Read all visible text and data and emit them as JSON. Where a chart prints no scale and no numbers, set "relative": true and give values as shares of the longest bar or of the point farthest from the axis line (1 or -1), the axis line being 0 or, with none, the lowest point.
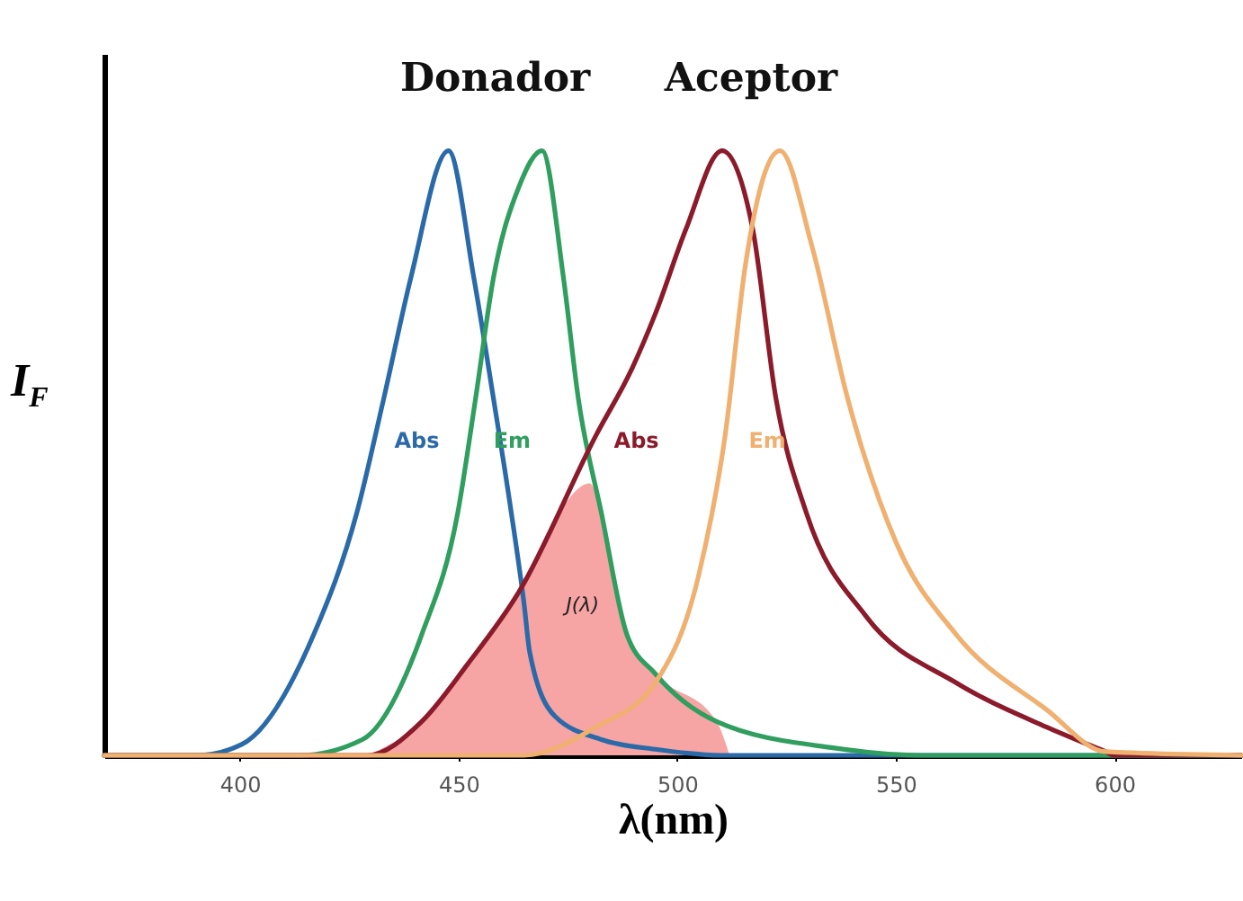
{
  "chart_data": {
    "type": "line",
    "relative": true,
    "xlabel": "λ(nm)",
    "ylabel": "I$_{F}$",
    "xlim": [
      369,
      629
    ],
    "xticks": [
      400,
      450,
      500,
      550,
      600
    ],
    "grid": false,
    "series": [
      {
        "type": "area",
        "name": "J(λ)",
        "color": "#f6a4a4",
        "x": [
          429.2,
          441.6,
          452,
          463.8,
          472,
          480,
          482.7,
          488.5,
          495,
          509,
          512
        ],
        "values": [
          0,
          0.056,
          0.15,
          0.27,
          0.39,
          0.45,
          0.4,
          0.2,
          0.135,
          0.056,
          0
        ]
      },
      {
        "name": "Abs",
        "color": "#2a6aa8",
        "x": [
          369,
          390,
          400.4,
          416.9,
          426.7,
          432.9,
          439.1,
          447.7,
          453.5,
          458,
          462.1,
          465,
          466.3,
          472,
          482.7,
          495,
          510,
          629
        ],
        "values": [
          0,
          0,
          0.018,
          0.2,
          0.4,
          0.59,
          0.79,
          1,
          0.79,
          0.59,
          0.4,
          0.25,
          0.17,
          0.065,
          0.026,
          0.01,
          0,
          0
        ]
      },
      {
        "name": "Em",
        "color": "#2f9e5e",
        "x": [
          369,
          413.6,
          428,
          441.6,
          449.8,
          453.9,
          458,
          463.8,
          469.1,
          474,
          477.4,
          482.7,
          488.5,
          495,
          509,
          536,
          555.6,
          629
        ],
        "values": [
          0,
          0,
          0.026,
          0.2,
          0.4,
          0.59,
          0.79,
          0.94,
          1,
          0.79,
          0.59,
          0.4,
          0.2,
          0.135,
          0.056,
          0.012,
          0,
          0
        ]
      },
      {
        "name": "Abs",
        "color": "#8b1a2b",
        "x": [
          369,
          429.2,
          441.6,
          452,
          463.8,
          481.5,
          489.7,
          495,
          502,
          510.3,
          517.3,
          522.6,
          529.6,
          543.2,
          563.8,
          584.4,
          598,
          600,
          629
        ],
        "values": [
          0,
          0,
          0.056,
          0.15,
          0.27,
          0.53,
          0.64,
          0.73,
          0.87,
          1,
          0.87,
          0.59,
          0.4,
          0.23,
          0.12,
          0.047,
          0.006,
          0,
          0
        ]
      },
      {
        "name": "Em",
        "color": "#f0b070",
        "x": [
          369,
          465,
          481.5,
          495,
          505,
          511,
          515.6,
          523.5,
          530.9,
          539,
          550.2,
          563.8,
          584.4,
          598,
          629
        ],
        "values": [
          0,
          0,
          0.047,
          0.12,
          0.3,
          0.53,
          0.81,
          1,
          0.84,
          0.59,
          0.35,
          0.2,
          0.076,
          0.006,
          0
        ]
      }
    ],
    "annotations": [
      "Donador",
      "Aceptor"
    ]
  }
}
